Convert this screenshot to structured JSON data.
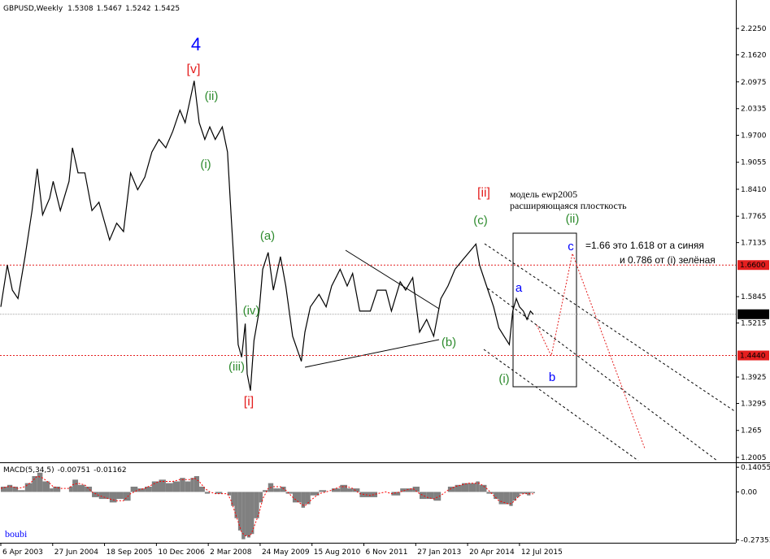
{
  "header": {
    "symbol": "GBPUSD,Weekly",
    "ohlc": [
      1.5308,
      1.5467,
      1.5242,
      1.5425
    ]
  },
  "chart_data": [
    {
      "type": "line",
      "color": "#000000",
      "x": [
        "2003-04-06",
        "2003-06-01",
        "2003-07-15",
        "2003-09-01",
        "2003-11-01",
        "2004-01-01",
        "2004-02-15",
        "2004-04-01",
        "2004-06-01",
        "2004-07-01",
        "2004-09-01",
        "2004-11-15",
        "2004-12-15",
        "2005-02-01",
        "2005-04-01",
        "2005-06-01",
        "2005-08-01",
        "2005-11-01",
        "2006-01-01",
        "2006-03-01",
        "2006-05-01",
        "2006-07-01",
        "2006-09-01",
        "2006-11-01",
        "2007-01-01",
        "2007-03-01",
        "2007-05-01",
        "2007-07-01",
        "2007-08-15",
        "2007-10-01",
        "2007-11-01",
        "2007-12-15",
        "2008-02-01",
        "2008-03-15",
        "2008-05-01",
        "2008-07-01",
        "2008-08-15",
        "2008-09-15",
        "2008-10-15",
        "2008-11-15",
        "2008-12-15",
        "2009-01-15",
        "2009-02-01",
        "2009-03-01",
        "2009-04-01",
        "2009-05-15",
        "2009-06-15",
        "2009-08-01",
        "2009-09-15",
        "2009-11-15",
        "2010-01-01",
        "2010-03-01",
        "2010-05-15",
        "2010-06-15",
        "2010-08-01",
        "2010-10-15",
        "2010-12-15",
        "2011-02-01",
        "2011-04-15",
        "2011-06-15",
        "2011-08-01",
        "2011-10-01",
        "2012-01-01",
        "2012-03-01",
        "2012-05-15",
        "2012-07-01",
        "2012-09-15",
        "2012-11-01",
        "2013-01-01",
        "2013-03-01",
        "2013-05-01",
        "2013-07-01",
        "2013-09-01",
        "2013-11-01",
        "2014-01-01",
        "2014-03-01",
        "2014-05-01",
        "2014-07-01",
        "2014-08-01",
        "2014-10-01",
        "2014-12-01",
        "2015-01-15",
        "2015-03-01",
        "2015-04-15",
        "2015-05-15",
        "2015-06-15",
        "2015-07-12",
        "2015-08-15",
        "2015-09-15",
        "2015-10-15",
        "2015-11-08"
      ],
      "values": [
        1.56,
        1.66,
        1.6,
        1.58,
        1.68,
        1.79,
        1.89,
        1.78,
        1.82,
        1.86,
        1.79,
        1.86,
        1.94,
        1.88,
        1.88,
        1.79,
        1.81,
        1.72,
        1.76,
        1.74,
        1.88,
        1.84,
        1.87,
        1.93,
        1.96,
        1.94,
        1.98,
        2.03,
        2.0,
        2.06,
        2.1,
        2.0,
        1.96,
        1.99,
        1.96,
        1.99,
        1.93,
        1.78,
        1.64,
        1.47,
        1.44,
        1.52,
        1.4,
        1.36,
        1.48,
        1.55,
        1.65,
        1.69,
        1.6,
        1.68,
        1.61,
        1.49,
        1.43,
        1.5,
        1.56,
        1.59,
        1.56,
        1.61,
        1.65,
        1.61,
        1.64,
        1.55,
        1.55,
        1.6,
        1.6,
        1.55,
        1.62,
        1.6,
        1.63,
        1.5,
        1.53,
        1.49,
        1.58,
        1.61,
        1.65,
        1.67,
        1.69,
        1.71,
        1.66,
        1.61,
        1.56,
        1.51,
        1.49,
        1.47,
        1.55,
        1.58,
        1.56,
        1.55,
        1.53,
        1.55,
        1.5425
      ],
      "xlim": [
        "2003-03-30",
        "2020-08-23"
      ],
      "ylim": [
        1.1927,
        2.2853
      ],
      "yticks": [
        {
          "value": 2.225,
          "label": "2.2250"
        },
        {
          "value": 2.162,
          "label": "2.1620"
        },
        {
          "value": 2.0975,
          "label": "2.0975"
        },
        {
          "value": 2.0335,
          "label": "2.0335"
        },
        {
          "value": 1.97,
          "label": "1.9700"
        },
        {
          "value": 1.9055,
          "label": "1.9055"
        },
        {
          "value": 1.841,
          "label": "1.8410"
        },
        {
          "value": 1.7765,
          "label": "1.7765"
        },
        {
          "value": 1.7135,
          "label": "1.7135"
        },
        {
          "value": 1.5845,
          "label": "1.5845"
        },
        {
          "value": 1.5215,
          "label": "1.5215"
        },
        {
          "value": 1.3925,
          "label": "1.3925"
        },
        {
          "value": 1.3295,
          "label": "1.3295"
        },
        1.265,
        {
          "value": 1.2005,
          "label": "1.2005"
        }
      ],
      "xticks": [
        {
          "value": "2003-04-06",
          "label": "6 Apr 2003"
        },
        {
          "value": "2004-06-27",
          "label": "27 Jun 2004"
        },
        {
          "value": "2005-09-18",
          "label": "18 Sep 2005"
        },
        {
          "value": "2006-12-10",
          "label": "10 Dec 2006"
        },
        {
          "value": "2008-03-02",
          "label": "2 Mar 2008"
        },
        {
          "value": "2009-05-24",
          "label": "24 May 2009"
        },
        {
          "value": "2010-08-15",
          "label": "15 Aug 2010"
        },
        {
          "value": "2011-11-06",
          "label": "6 Nov 2011"
        },
        {
          "value": "2013-01-27",
          "label": "27 Jan 2013"
        },
        {
          "value": "2014-04-20",
          "label": "20 Apr 2014"
        },
        {
          "value": "2015-07-12",
          "label": "12 Jul 2015"
        }
      ],
      "levels": [
        {
          "value": 1.66,
          "label": "1.6600",
          "color": "#e41f1f"
        },
        {
          "value": 1.444,
          "label": "1.4440",
          "color": "#e41f1f"
        }
      ],
      "current": {
        "value": 1.5425,
        "label": "1.5425",
        "color": "#000000"
      },
      "annotations": [
        {
          "text": "4",
          "color": "#0000ff"
        },
        {
          "text": "[v]",
          "color": "#e41f1f"
        },
        {
          "text": "(ii)",
          "color": "#2e8b2e"
        },
        {
          "text": "(i)",
          "color": "#2e8b2e"
        },
        {
          "text": "(iii)",
          "color": "#2e8b2e"
        },
        {
          "text": "(iv)",
          "color": "#2e8b2e"
        },
        {
          "text": "[i]",
          "color": "#e41f1f"
        },
        {
          "text": "(a)",
          "color": "#2e8b2e"
        },
        {
          "text": "(b)",
          "color": "#2e8b2e"
        },
        {
          "text": "(c)",
          "color": "#2e8b2e"
        },
        {
          "text": "[ii]",
          "color": "#e41f1f"
        },
        {
          "text": "(ii)",
          "color": "#2e8b2e"
        },
        {
          "text": "(i)",
          "color": "#2e8b2e"
        },
        {
          "text": "a",
          "color": "#0000ff"
        },
        {
          "text": "b",
          "color": "#0000ff"
        },
        {
          "text": "c",
          "color": "#0000ff"
        },
        {
          "text": "модель ewp2005",
          "color": "#000000"
        },
        {
          "text": "расширяющаяся плосткость",
          "color": "#000000"
        },
        {
          "text": "=1.66 это 1.618 от а синяя",
          "color": "#000000"
        },
        {
          "text": "и 0.786 от (i) зелёная",
          "color": "#000000"
        },
        {
          "text": "boubi",
          "color": "#0000ff"
        }
      ]
    },
    {
      "type": "macd",
      "title": "MACD(5,34,5)",
      "x": [
        "2003-04-06",
        "2003-06-01",
        "2003-07-15",
        "2003-09-01",
        "2003-11-01",
        "2004-01-01",
        "2004-02-15",
        "2004-04-01",
        "2004-06-01",
        "2004-07-01",
        "2004-09-01",
        "2004-11-15",
        "2004-12-15",
        "2005-02-01",
        "2005-04-01",
        "2005-06-01",
        "2005-08-01",
        "2005-11-01",
        "2006-01-01",
        "2006-03-01",
        "2006-05-01",
        "2006-07-01",
        "2006-09-01",
        "2006-11-01",
        "2007-01-01",
        "2007-03-01",
        "2007-05-01",
        "2007-07-01",
        "2007-08-15",
        "2007-10-01",
        "2007-11-01",
        "2007-12-15",
        "2008-02-01",
        "2008-03-15",
        "2008-05-01",
        "2008-07-01",
        "2008-08-15",
        "2008-09-15",
        "2008-10-15",
        "2008-11-15",
        "2008-12-15",
        "2009-01-15",
        "2009-02-01",
        "2009-03-01",
        "2009-04-01",
        "2009-05-15",
        "2009-06-15",
        "2009-08-01",
        "2009-09-15",
        "2009-11-15",
        "2010-01-01",
        "2010-03-01",
        "2010-05-15",
        "2010-06-15",
        "2010-08-01",
        "2010-10-15",
        "2010-12-15",
        "2011-02-01",
        "2011-04-15",
        "2011-06-15",
        "2011-08-01",
        "2011-10-01",
        "2012-01-01",
        "2012-03-01",
        "2012-05-15",
        "2012-07-01",
        "2012-09-15",
        "2012-11-01",
        "2013-01-01",
        "2013-03-01",
        "2013-05-01",
        "2013-07-01",
        "2013-09-01",
        "2013-11-01",
        "2014-01-01",
        "2014-03-01",
        "2014-05-01",
        "2014-07-01",
        "2014-08-01",
        "2014-10-01",
        "2014-12-01",
        "2015-01-15",
        "2015-03-01",
        "2015-04-15",
        "2015-05-15",
        "2015-06-15",
        "2015-07-12",
        "2015-08-15",
        "2015-09-15",
        "2015-10-15",
        "2015-11-08"
      ],
      "series": [
        {
          "style": "histogram",
          "color": "#808080",
          "values": [
            0.03,
            0.04,
            0.03,
            0.01,
            0.05,
            0.09,
            0.11,
            0.06,
            0.02,
            0.03,
            0.0,
            0.03,
            0.07,
            0.04,
            0.03,
            -0.03,
            -0.04,
            -0.06,
            -0.04,
            -0.05,
            0.03,
            0.02,
            0.03,
            0.06,
            0.07,
            0.05,
            0.06,
            0.08,
            0.06,
            0.08,
            0.09,
            0.03,
            -0.01,
            0.0,
            -0.01,
            0.0,
            -0.02,
            -0.08,
            -0.15,
            -0.22,
            -0.27,
            -0.25,
            -0.26,
            -0.24,
            -0.15,
            -0.06,
            0.01,
            0.05,
            0.02,
            0.03,
            -0.01,
            -0.06,
            -0.09,
            -0.07,
            -0.02,
            0.01,
            0.0,
            0.02,
            0.04,
            0.02,
            0.02,
            -0.03,
            -0.03,
            0.0,
            0.0,
            -0.02,
            0.02,
            0.02,
            0.03,
            -0.04,
            -0.04,
            -0.05,
            0.0,
            0.03,
            0.04,
            0.05,
            0.05,
            0.06,
            0.04,
            -0.01,
            -0.04,
            -0.07,
            -0.07,
            -0.08,
            -0.05,
            -0.03,
            -0.01,
            -0.01,
            -0.02,
            -0.005,
            -0.00751
          ]
        },
        {
          "style": "dotted",
          "color": "#ff0000",
          "values": [
            0.02,
            0.03,
            0.03,
            0.02,
            0.03,
            0.06,
            0.09,
            0.08,
            0.05,
            0.03,
            0.02,
            0.02,
            0.04,
            0.05,
            0.04,
            0.0,
            -0.02,
            -0.04,
            -0.05,
            -0.05,
            -0.01,
            0.01,
            0.02,
            0.04,
            0.06,
            0.06,
            0.06,
            0.07,
            0.07,
            0.07,
            0.08,
            0.06,
            0.02,
            0.0,
            -0.01,
            -0.01,
            -0.01,
            -0.05,
            -0.11,
            -0.17,
            -0.23,
            -0.25,
            -0.25,
            -0.25,
            -0.2,
            -0.12,
            -0.04,
            0.02,
            0.03,
            0.03,
            0.01,
            -0.03,
            -0.07,
            -0.08,
            -0.05,
            -0.01,
            0.0,
            0.01,
            0.03,
            0.03,
            0.02,
            -0.01,
            -0.02,
            -0.01,
            0.0,
            -0.01,
            0.0,
            0.01,
            0.02,
            -0.01,
            -0.03,
            -0.04,
            -0.02,
            0.01,
            0.03,
            0.04,
            0.05,
            0.05,
            0.05,
            0.02,
            -0.02,
            -0.05,
            -0.06,
            -0.07,
            -0.06,
            -0.04,
            -0.02,
            -0.01,
            -0.01,
            -0.01,
            -0.01162
          ]
        }
      ],
      "xlim": [
        "2003-03-30",
        "2020-08-23"
      ],
      "ylim": [
        -0.29,
        0.155
      ],
      "yticks": [
        0.14055,
        {
          "value": 0,
          "label": "0.00"
        },
        -0.27353
      ]
    }
  ]
}
